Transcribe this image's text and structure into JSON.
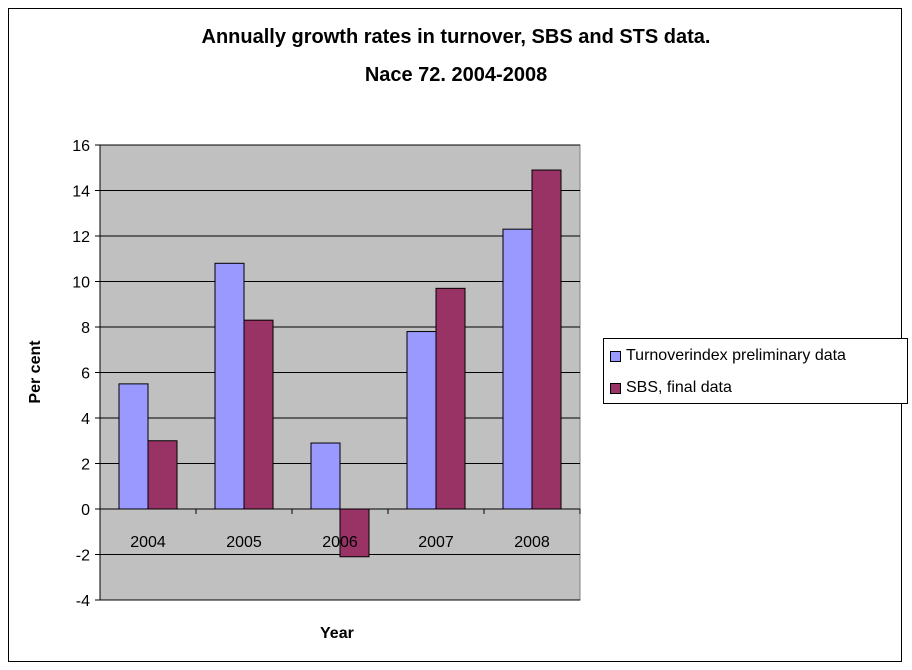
{
  "chart_data": {
    "type": "bar",
    "title_line1": "Annually growth rates in turnover, SBS and STS data.",
    "title_line2": "Nace 72. 2004-2008",
    "xlabel": "Year",
    "ylabel": "Per cent",
    "categories": [
      "2004",
      "2005",
      "2006",
      "2007",
      "2008"
    ],
    "series": [
      {
        "name": "Turnoverindex preliminary data",
        "color": "#9999FF",
        "values": [
          5.5,
          10.8,
          2.9,
          7.8,
          12.3
        ]
      },
      {
        "name": "SBS, final data",
        "color": "#993366",
        "values": [
          3.0,
          8.3,
          -2.1,
          9.7,
          14.9
        ]
      }
    ],
    "ylim": [
      -4,
      16
    ],
    "yticks": [
      "-4",
      "-2",
      "0",
      "2",
      "4",
      "6",
      "8",
      "10",
      "12",
      "14",
      "16"
    ],
    "grid": true,
    "plot_background": "#C0C0C0",
    "legend_position": "right"
  }
}
